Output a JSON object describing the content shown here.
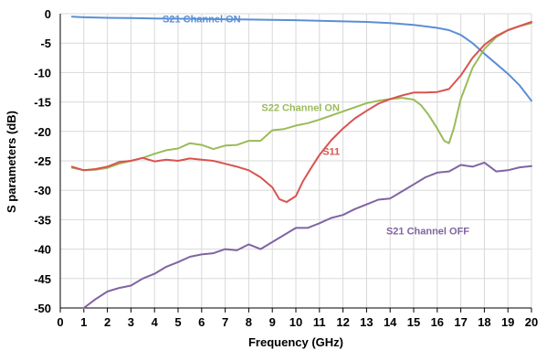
{
  "chart_data": {
    "type": "line",
    "xlabel": "Frequency (GHz)",
    "ylabel": "S parameters (dB)",
    "xlim": [
      0,
      20
    ],
    "ylim": [
      -50,
      0
    ],
    "xticks": [
      "0",
      "1",
      "2",
      "3",
      "4",
      "5",
      "6",
      "7",
      "8",
      "9",
      "10",
      "11",
      "12",
      "13",
      "14",
      "15",
      "16",
      "17",
      "18",
      "19",
      "20"
    ],
    "yticks": [
      "0",
      "-5",
      "-10",
      "-15",
      "-20",
      "-25",
      "-30",
      "-35",
      "-40",
      "-45",
      "-50"
    ],
    "grid": true,
    "legend": "inline labels",
    "series": [
      {
        "name": "S21 Channel ON",
        "color": "#5b8fd4",
        "label_at": [
          6,
          -1.5
        ],
        "x": [
          0.5,
          1,
          2,
          3,
          4,
          5,
          6,
          7,
          8,
          9,
          10,
          11,
          12,
          13,
          14,
          15,
          16,
          16.5,
          17,
          17.5,
          18,
          18.5,
          19,
          19.5,
          20
        ],
        "y": [
          -0.5,
          -0.6,
          -0.7,
          -0.75,
          -0.8,
          -0.85,
          -0.9,
          -0.95,
          -1.0,
          -1.05,
          -1.1,
          -1.2,
          -1.3,
          -1.4,
          -1.6,
          -1.9,
          -2.4,
          -2.8,
          -3.6,
          -5.0,
          -6.8,
          -8.5,
          -10.2,
          -12.2,
          -14.8
        ]
      },
      {
        "name": "S22 Channel ON",
        "color": "#9bbb59",
        "label_at": [
          10.2,
          -16.5
        ],
        "x": [
          0.5,
          1,
          1.5,
          2,
          2.5,
          3,
          3.5,
          4,
          4.5,
          5,
          5.5,
          6,
          6.5,
          7,
          7.5,
          8,
          8.5,
          9,
          9.5,
          10,
          10.5,
          11,
          11.5,
          12,
          12.5,
          13,
          13.5,
          14,
          14.5,
          15,
          15.3,
          15.6,
          16,
          16.3,
          16.5,
          16.7,
          17,
          17.5,
          18,
          18.5,
          19,
          19.5,
          20
        ],
        "y": [
          -26.2,
          -26.6,
          -26.5,
          -26.2,
          -25.5,
          -25.0,
          -24.5,
          -23.8,
          -23.2,
          -22.9,
          -22.0,
          -22.3,
          -23.0,
          -22.4,
          -22.3,
          -21.6,
          -21.6,
          -19.8,
          -19.6,
          -19.0,
          -18.6,
          -18.0,
          -17.3,
          -16.6,
          -15.9,
          -15.2,
          -14.8,
          -14.5,
          -14.3,
          -14.6,
          -15.5,
          -17.0,
          -19.5,
          -21.6,
          -22.0,
          -19.5,
          -14.5,
          -9.2,
          -6.0,
          -4.0,
          -2.8,
          -2.1,
          -1.6
        ]
      },
      {
        "name": "S11",
        "color": "#d9534f",
        "label_at": [
          11.5,
          -24
        ],
        "x": [
          0.5,
          1,
          1.5,
          2,
          2.5,
          3,
          3.5,
          4,
          4.5,
          5,
          5.5,
          6,
          6.5,
          7,
          7.5,
          8,
          8.5,
          9,
          9.3,
          9.6,
          10,
          10.3,
          10.6,
          11,
          11.5,
          12,
          12.5,
          13,
          13.5,
          14,
          14.5,
          15,
          15.5,
          16,
          16.5,
          17,
          17.5,
          18,
          18.5,
          19,
          19.5,
          20
        ],
        "y": [
          -26.0,
          -26.6,
          -26.4,
          -26.0,
          -25.2,
          -25.0,
          -24.5,
          -25.1,
          -24.8,
          -25.0,
          -24.6,
          -24.8,
          -25.0,
          -25.5,
          -26.0,
          -26.6,
          -27.8,
          -29.5,
          -31.5,
          -32.0,
          -31.0,
          -28.5,
          -26.5,
          -24.0,
          -21.5,
          -19.5,
          -17.8,
          -16.5,
          -15.3,
          -14.5,
          -13.9,
          -13.4,
          -13.4,
          -13.3,
          -12.8,
          -10.5,
          -7.5,
          -5.3,
          -3.8,
          -2.8,
          -2.1,
          -1.4
        ]
      },
      {
        "name": "S21 Channel OFF",
        "color": "#8064a2",
        "label_at": [
          15.6,
          -37.5
        ],
        "x": [
          1,
          1.5,
          2,
          2.5,
          3,
          3.5,
          4,
          4.5,
          5,
          5.5,
          6,
          6.5,
          7,
          7.5,
          8,
          8.5,
          9,
          9.5,
          10,
          10.5,
          11,
          11.5,
          12,
          12.5,
          13,
          13.5,
          14,
          14.5,
          15,
          15.5,
          16,
          16.5,
          17,
          17.5,
          18,
          18.5,
          19,
          19.5,
          20
        ],
        "y": [
          -50.0,
          -48.5,
          -47.2,
          -46.6,
          -46.2,
          -45.0,
          -44.2,
          -43.0,
          -42.2,
          -41.3,
          -40.9,
          -40.7,
          -40.0,
          -40.2,
          -39.2,
          -40.0,
          -38.8,
          -37.6,
          -36.4,
          -36.4,
          -35.6,
          -34.7,
          -34.2,
          -33.2,
          -32.4,
          -31.6,
          -31.4,
          -30.2,
          -29.0,
          -27.8,
          -27.0,
          -26.8,
          -25.7,
          -26.0,
          -25.3,
          -26.8,
          -26.6,
          -26.1,
          -25.9
        ]
      }
    ]
  }
}
